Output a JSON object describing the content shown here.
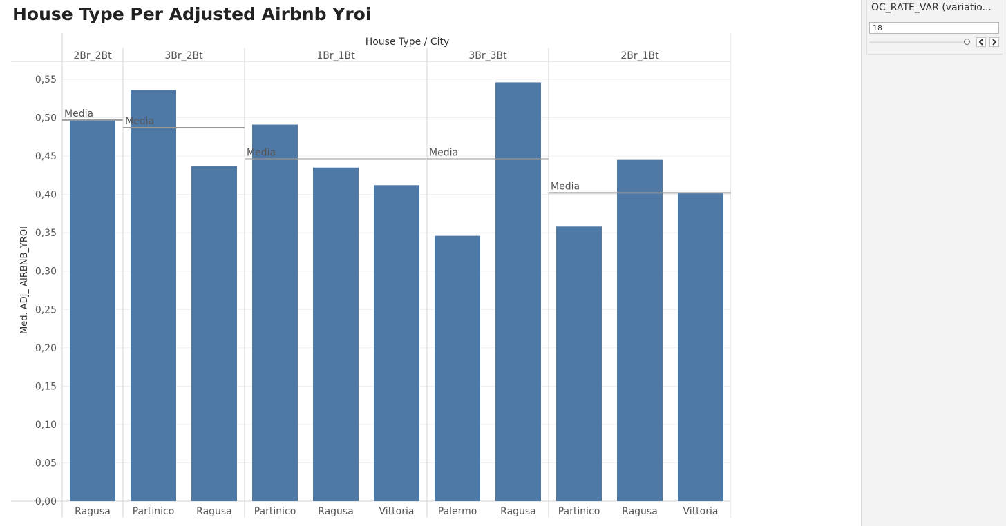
{
  "title": "House Type Per Adjusted Airbnb Yroi",
  "parameter": {
    "label": "OC_RATE_VAR (variatio...",
    "value": "18",
    "prev_icon": "chevron-left-icon",
    "next_icon": "chevron-right-icon"
  },
  "colors": {
    "bar": "#4e79a7",
    "reference_line": "#9a9a9a",
    "grid": "#efefef",
    "divider": "#d4d4d4"
  },
  "chart_data": {
    "type": "bar",
    "xlabel": "House Type / City",
    "ylabel": "Med. ADJ_ AIRBNB_YROI",
    "ylim": [
      0,
      0.55
    ],
    "yticks": [
      "0,00",
      "0,05",
      "0,10",
      "0,15",
      "0,20",
      "0,25",
      "0,30",
      "0,35",
      "0,40",
      "0,45",
      "0,50",
      "0,55"
    ],
    "groups": [
      {
        "name": "2Br_2Bt",
        "reference": {
          "label": "Media",
          "value": 0.497
        },
        "bars": [
          {
            "city": "Ragusa",
            "value": 0.497
          }
        ]
      },
      {
        "name": "3Br_2Bt",
        "reference": {
          "label": "Media",
          "value": 0.487
        },
        "bars": [
          {
            "city": "Partinico",
            "value": 0.536
          },
          {
            "city": "Ragusa",
            "value": 0.437
          }
        ]
      },
      {
        "name": "1Br_1Bt",
        "reference": {
          "label": "Media",
          "value": 0.446
        },
        "bars": [
          {
            "city": "Partinico",
            "value": 0.491
          },
          {
            "city": "Ragusa",
            "value": 0.435
          },
          {
            "city": "Vittoria",
            "value": 0.412
          }
        ]
      },
      {
        "name": "3Br_3Bt",
        "reference": {
          "label": "Media",
          "value": 0.446
        },
        "bars": [
          {
            "city": "Palermo",
            "value": 0.346
          },
          {
            "city": "Ragusa",
            "value": 0.546
          }
        ]
      },
      {
        "name": "2Br_1Bt",
        "reference": {
          "label": "Media",
          "value": 0.402
        },
        "bars": [
          {
            "city": "Partinico",
            "value": 0.358
          },
          {
            "city": "Ragusa",
            "value": 0.445
          },
          {
            "city": "Vittoria",
            "value": 0.402
          }
        ]
      }
    ]
  }
}
